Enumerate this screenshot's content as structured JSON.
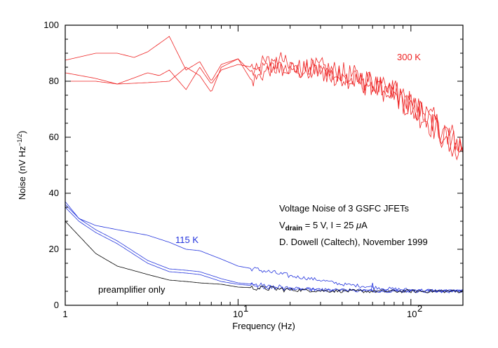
{
  "chart_data": {
    "type": "line",
    "x_scale": "log",
    "xlabel": "Frequency (Hz)",
    "ylabel": "Noise (nV Hz",
    "ylabel_sup": "−1/2",
    "ylabel_close": ")",
    "xlim": [
      1,
      200
    ],
    "ylim": [
      0,
      100
    ],
    "grid": false,
    "y_ticks": [
      "0",
      "20",
      "40",
      "60",
      "80",
      "100"
    ],
    "x_tick_labels": {
      "one": "1",
      "ten_base": "10",
      "ten_exp": "1",
      "hundred_base": "10",
      "hundred_exp": "2"
    },
    "annotations": {
      "title_line": "Voltage Noise of 3 GSFC JFETs",
      "vdrain_v": "V",
      "vdrain_sub": "drain",
      "vdrain_rest": " = 5 V, I = 25 ",
      "vdrain_mu": "μ",
      "vdrain_unit": "A",
      "credit": "D. Dowell (Caltech), November 1999",
      "label_300k": "300 K",
      "label_115k": "115 K",
      "label_preamp": "preamplifier only"
    },
    "colors": {
      "red": "#ee2222",
      "blue": "#2233dd",
      "black": "#000000"
    },
    "series": [
      {
        "color": "red",
        "x": [
          1,
          1.5,
          2,
          2.5,
          3,
          4,
          5,
          6,
          7,
          8,
          10,
          12,
          15,
          20,
          30,
          40,
          60,
          80,
          100,
          120,
          150,
          200
        ],
        "values": [
          87.5,
          90,
          90,
          88.5,
          90.5,
          96,
          84,
          87,
          80,
          86,
          88,
          83,
          85,
          84,
          83,
          82,
          78,
          76,
          72,
          69,
          63,
          57
        ]
      },
      {
        "color": "red",
        "x": [
          1,
          1.5,
          2,
          3,
          3.5,
          4,
          5,
          6,
          7,
          8,
          10,
          12,
          15,
          20,
          30,
          40,
          60,
          80,
          100,
          120,
          150,
          200
        ],
        "values": [
          83,
          81,
          79,
          83,
          82,
          84,
          77,
          85,
          79,
          84,
          86,
          85,
          87,
          85,
          84,
          81,
          79,
          75,
          71,
          68,
          62,
          55
        ]
      },
      {
        "color": "red",
        "x": [
          1,
          1.5,
          2,
          3,
          4,
          5,
          6,
          7,
          8,
          10,
          12,
          15,
          18,
          20,
          30,
          40,
          60,
          80,
          100,
          120,
          150,
          200
        ],
        "values": [
          80,
          80,
          79,
          79.5,
          80,
          85,
          82,
          76,
          85,
          88,
          80,
          84,
          88,
          84,
          85,
          83,
          80,
          77,
          70,
          67,
          61,
          54
        ]
      },
      {
        "color": "blue",
        "x": [
          1,
          1.2,
          1.5,
          2,
          3,
          4,
          5,
          6,
          8,
          10,
          15,
          20,
          30,
          40,
          50,
          60,
          70,
          100,
          150,
          200
        ],
        "values": [
          37,
          31,
          28.5,
          27,
          25,
          22.5,
          20,
          19.5,
          16.5,
          14,
          12,
          10.5,
          9,
          7.5,
          7,
          6.5,
          6,
          5.5,
          5.2,
          5
        ]
      },
      {
        "color": "blue",
        "x": [
          1,
          1.2,
          1.5,
          2,
          3,
          4,
          5,
          6,
          8,
          10,
          15,
          20,
          30,
          60,
          100,
          200
        ],
        "values": [
          36,
          31,
          27,
          23,
          16,
          13,
          12.5,
          12,
          9.5,
          8,
          7,
          6,
          5.5,
          5.2,
          5.1,
          5
        ]
      },
      {
        "color": "blue",
        "x": [
          1,
          1.2,
          1.5,
          2,
          3,
          4,
          5,
          6,
          8,
          10,
          15,
          20,
          30,
          60,
          100,
          200
        ],
        "values": [
          35,
          30,
          26,
          22,
          15,
          12,
          11.5,
          11,
          8.5,
          7.5,
          6.5,
          6,
          5.5,
          5.2,
          5.1,
          5
        ]
      },
      {
        "color": "black",
        "x": [
          1,
          1.5,
          2,
          3,
          4,
          5,
          6,
          8,
          10,
          15,
          20,
          30,
          50,
          100,
          200
        ],
        "values": [
          30,
          18.5,
          14,
          11,
          9,
          8.5,
          8,
          7.5,
          6.5,
          6,
          5.5,
          5.2,
          5,
          5,
          5
        ]
      }
    ]
  }
}
